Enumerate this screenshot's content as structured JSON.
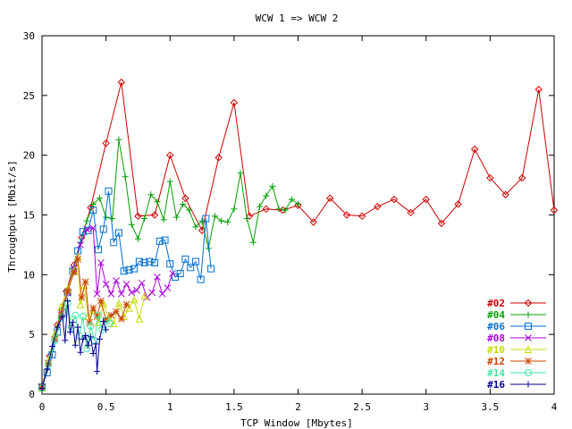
{
  "chart_data": {
    "type": "line",
    "title": "WCW 1 => WCW 2",
    "xlabel": "TCP Window [Mbytes]",
    "ylabel": "Throughput [Mbit/s]",
    "xlim": [
      0,
      4
    ],
    "ylim": [
      0,
      30
    ],
    "xticks": [
      "0",
      "0.5",
      "1",
      "1.5",
      "2",
      "2.5",
      "3",
      "3.5",
      "4"
    ],
    "yticks": [
      "0",
      "5",
      "10",
      "15",
      "20",
      "25",
      "30"
    ],
    "grid": false,
    "legend_position": "bottom-right",
    "series": [
      {
        "name": "#02",
        "color": "#cc0000",
        "marker": "diamond",
        "points": [
          [
            0,
            0.6
          ],
          [
            0.06,
            3.2
          ],
          [
            0.12,
            5.8
          ],
          [
            0.19,
            8.6
          ],
          [
            0.25,
            10.8
          ],
          [
            0.31,
            13.1
          ],
          [
            0.38,
            15.6
          ],
          [
            0.5,
            21.0
          ],
          [
            0.62,
            26.1
          ],
          [
            0.75,
            14.9
          ],
          [
            0.88,
            15.0
          ],
          [
            1.0,
            20.0
          ],
          [
            1.12,
            16.4
          ],
          [
            1.25,
            13.7
          ],
          [
            1.38,
            19.8
          ],
          [
            1.5,
            24.4
          ],
          [
            1.62,
            14.9
          ],
          [
            1.75,
            15.5
          ],
          [
            1.88,
            15.4
          ],
          [
            2.0,
            15.8
          ],
          [
            2.12,
            14.4
          ],
          [
            2.25,
            16.4
          ],
          [
            2.38,
            15.0
          ],
          [
            2.5,
            14.9
          ],
          [
            2.62,
            15.7
          ],
          [
            2.75,
            16.3
          ],
          [
            2.88,
            15.2
          ],
          [
            3.0,
            16.3
          ],
          [
            3.12,
            14.3
          ],
          [
            3.25,
            15.9
          ],
          [
            3.38,
            20.5
          ],
          [
            3.5,
            18.1
          ],
          [
            3.62,
            16.7
          ],
          [
            3.75,
            18.1
          ],
          [
            3.88,
            25.5
          ],
          [
            4.0,
            15.4
          ]
        ]
      },
      {
        "name": "#04",
        "color": "#00a000",
        "marker": "plus",
        "points": [
          [
            0,
            0.6
          ],
          [
            0.05,
            2.6
          ],
          [
            0.1,
            4.6
          ],
          [
            0.15,
            6.6
          ],
          [
            0.2,
            8.6
          ],
          [
            0.25,
            10.5
          ],
          [
            0.3,
            12.7
          ],
          [
            0.35,
            14.5
          ],
          [
            0.4,
            15.9
          ],
          [
            0.45,
            16.4
          ],
          [
            0.5,
            14.8
          ],
          [
            0.55,
            14.7
          ],
          [
            0.6,
            21.3
          ],
          [
            0.65,
            18.2
          ],
          [
            0.7,
            14.2
          ],
          [
            0.75,
            13.0
          ],
          [
            0.8,
            14.7
          ],
          [
            0.85,
            16.7
          ],
          [
            0.9,
            16.1
          ],
          [
            0.95,
            14.6
          ],
          [
            1.0,
            17.8
          ],
          [
            1.05,
            14.8
          ],
          [
            1.1,
            15.9
          ],
          [
            1.15,
            15.4
          ],
          [
            1.2,
            14.0
          ],
          [
            1.25,
            14.5
          ],
          [
            1.3,
            12.2
          ],
          [
            1.35,
            14.9
          ],
          [
            1.4,
            14.5
          ],
          [
            1.45,
            14.4
          ],
          [
            1.5,
            15.5
          ],
          [
            1.55,
            18.5
          ],
          [
            1.6,
            14.7
          ],
          [
            1.65,
            12.7
          ],
          [
            1.7,
            15.7
          ],
          [
            1.75,
            16.6
          ],
          [
            1.8,
            17.4
          ],
          [
            1.85,
            15.5
          ],
          [
            1.9,
            15.4
          ],
          [
            1.95,
            16.3
          ],
          [
            2.0,
            15.9
          ]
        ]
      },
      {
        "name": "#06",
        "color": "#0070d0",
        "marker": "square",
        "points": [
          [
            0,
            0.6
          ],
          [
            0.04,
            1.8
          ],
          [
            0.08,
            3.3
          ],
          [
            0.12,
            5.2
          ],
          [
            0.16,
            6.9
          ],
          [
            0.2,
            8.5
          ],
          [
            0.24,
            10.3
          ],
          [
            0.28,
            12.0
          ],
          [
            0.32,
            13.6
          ],
          [
            0.36,
            13.7
          ],
          [
            0.4,
            15.4
          ],
          [
            0.44,
            12.1
          ],
          [
            0.48,
            13.8
          ],
          [
            0.52,
            17.0
          ],
          [
            0.56,
            12.7
          ],
          [
            0.6,
            13.5
          ],
          [
            0.64,
            10.3
          ],
          [
            0.68,
            10.4
          ],
          [
            0.72,
            10.5
          ],
          [
            0.76,
            11.1
          ],
          [
            0.8,
            11.0
          ],
          [
            0.84,
            11.1
          ],
          [
            0.88,
            11.0
          ],
          [
            0.92,
            12.8
          ],
          [
            0.96,
            12.9
          ],
          [
            1.0,
            10.9
          ],
          [
            1.04,
            9.8
          ],
          [
            1.08,
            10.1
          ],
          [
            1.12,
            11.3
          ],
          [
            1.16,
            10.6
          ],
          [
            1.2,
            11.1
          ],
          [
            1.24,
            9.6
          ],
          [
            1.28,
            14.7
          ],
          [
            1.32,
            10.5
          ]
        ]
      },
      {
        "name": "#08",
        "color": "#aa00dd",
        "marker": "x",
        "points": [
          [
            0,
            0.6
          ],
          [
            0.05,
            2.6
          ],
          [
            0.1,
            4.6
          ],
          [
            0.15,
            6.8
          ],
          [
            0.2,
            8.5
          ],
          [
            0.25,
            10.5
          ],
          [
            0.3,
            12.5
          ],
          [
            0.35,
            13.8
          ],
          [
            0.4,
            13.9
          ],
          [
            0.43,
            8.4
          ],
          [
            0.46,
            11.0
          ],
          [
            0.5,
            9.2
          ],
          [
            0.54,
            8.4
          ],
          [
            0.58,
            9.5
          ],
          [
            0.62,
            8.4
          ],
          [
            0.66,
            9.2
          ],
          [
            0.7,
            8.5
          ],
          [
            0.74,
            8.7
          ],
          [
            0.78,
            9.3
          ],
          [
            0.82,
            8.1
          ],
          [
            0.86,
            8.5
          ],
          [
            0.9,
            9.8
          ],
          [
            0.94,
            8.4
          ],
          [
            0.98,
            8.9
          ],
          [
            1.02,
            10.1
          ]
        ]
      },
      {
        "name": "#10",
        "color": "#c8dc00",
        "marker": "triangle",
        "points": [
          [
            0,
            0.5
          ],
          [
            0.05,
            2.8
          ],
          [
            0.1,
            5.0
          ],
          [
            0.15,
            7.3
          ],
          [
            0.2,
            8.8
          ],
          [
            0.25,
            10.3
          ],
          [
            0.28,
            11.5
          ],
          [
            0.3,
            7.5
          ],
          [
            0.33,
            9.1
          ],
          [
            0.36,
            6.5
          ],
          [
            0.4,
            7.0
          ],
          [
            0.44,
            6.0
          ],
          [
            0.48,
            7.6
          ],
          [
            0.52,
            6.4
          ],
          [
            0.56,
            5.9
          ],
          [
            0.6,
            7.6
          ],
          [
            0.64,
            6.5
          ],
          [
            0.68,
            7.2
          ],
          [
            0.72,
            7.9
          ],
          [
            0.76,
            6.3
          ],
          [
            0.8,
            8.2
          ]
        ]
      },
      {
        "name": "#12",
        "color": "#cc4400",
        "marker": "star",
        "points": [
          [
            0,
            0.6
          ],
          [
            0.05,
            2.6
          ],
          [
            0.1,
            4.6
          ],
          [
            0.15,
            6.6
          ],
          [
            0.2,
            8.6
          ],
          [
            0.25,
            10.2
          ],
          [
            0.28,
            11.3
          ],
          [
            0.31,
            8.1
          ],
          [
            0.34,
            9.4
          ],
          [
            0.37,
            6.0
          ],
          [
            0.4,
            7.2
          ],
          [
            0.43,
            6.5
          ],
          [
            0.46,
            7.8
          ],
          [
            0.5,
            6.2
          ],
          [
            0.54,
            6.6
          ],
          [
            0.58,
            6.9
          ],
          [
            0.62,
            6.3
          ],
          [
            0.66,
            7.5
          ]
        ]
      },
      {
        "name": "#14",
        "color": "#40e8a0",
        "marker": "circle",
        "points": [
          [
            0,
            0.5
          ],
          [
            0.05,
            2.5
          ],
          [
            0.1,
            4.5
          ],
          [
            0.15,
            6.4
          ],
          [
            0.2,
            7.6
          ],
          [
            0.23,
            5.6
          ],
          [
            0.26,
            6.6
          ],
          [
            0.29,
            4.9
          ],
          [
            0.32,
            6.5
          ],
          [
            0.35,
            3.8
          ],
          [
            0.38,
            5.7
          ],
          [
            0.41,
            4.5
          ],
          [
            0.44,
            6.6
          ],
          [
            0.47,
            5.4
          ],
          [
            0.5,
            6.2
          ],
          [
            0.53,
            5.9
          ]
        ]
      },
      {
        "name": "#16",
        "color": "#000090",
        "marker": "plus",
        "points": [
          [
            0,
            0.5
          ],
          [
            0.04,
            2.1
          ],
          [
            0.08,
            4.0
          ],
          [
            0.12,
            5.6
          ],
          [
            0.16,
            6.5
          ],
          [
            0.18,
            4.5
          ],
          [
            0.2,
            7.8
          ],
          [
            0.22,
            5.2
          ],
          [
            0.24,
            6.0
          ],
          [
            0.26,
            4.1
          ],
          [
            0.28,
            5.6
          ],
          [
            0.3,
            3.5
          ],
          [
            0.32,
            4.6
          ],
          [
            0.34,
            4.9
          ],
          [
            0.36,
            4.1
          ],
          [
            0.38,
            4.8
          ],
          [
            0.4,
            3.4
          ],
          [
            0.42,
            4.2
          ],
          [
            0.43,
            1.9
          ],
          [
            0.45,
            4.6
          ],
          [
            0.48,
            6.1
          ],
          [
            0.5,
            5.4
          ]
        ]
      }
    ]
  }
}
